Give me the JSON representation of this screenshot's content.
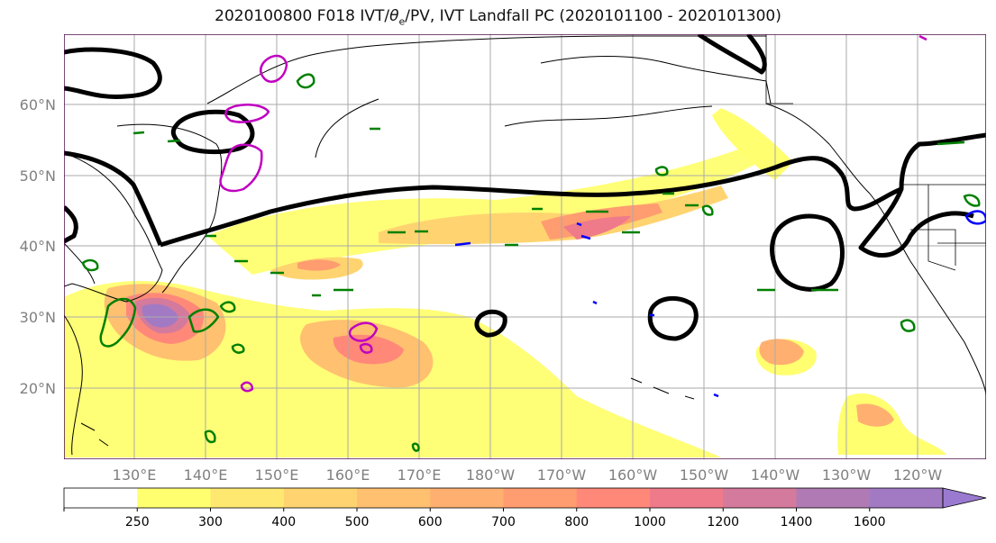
{
  "title": {
    "prefix": "2020100800 F018 IVT/",
    "theta": "θ",
    "theta_sub": "e",
    "suffix": "/PV, IVT Landfall PC (2020101100 - 2020101300)"
  },
  "map": {
    "lat_labels": [
      "20°N",
      "30°N",
      "40°N",
      "50°N",
      "60°N"
    ],
    "lon_labels": [
      "130°E",
      "140°E",
      "150°E",
      "160°E",
      "170°E",
      "180°W",
      "170°W",
      "160°W",
      "150°W",
      "140°W",
      "130°W",
      "120°W"
    ],
    "label_color": "#808080",
    "frame_color": "#4b0d4b"
  },
  "colorbar": {
    "ticks": [
      "250",
      "300",
      "400",
      "500",
      "600",
      "700",
      "800",
      "1000",
      "1200",
      "1400",
      "1600"
    ],
    "colors": [
      "#ffffff",
      "#ffff70",
      "#ffe870",
      "#ffd470",
      "#ffc070",
      "#ffb070",
      "#ff9c70",
      "#ff8878",
      "#ee7a8a",
      "#d47a9c",
      "#b07ab4",
      "#a27ac4",
      "#9a7ad0"
    ]
  },
  "legend_colors": {
    "ivt_pc_contour": "#000000",
    "theta_e": "#008000",
    "pv_magenta": "#c000c0",
    "pv_blue": "#0000ff"
  }
}
